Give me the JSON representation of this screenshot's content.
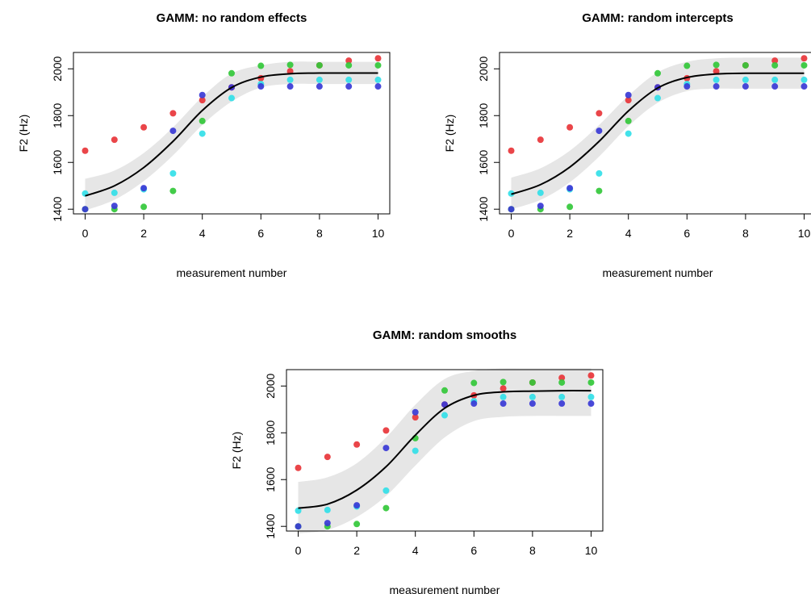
{
  "chart_data": [
    {
      "type": "scatter",
      "title": "GAMM: no random effects",
      "xlabel": "measurement number",
      "ylabel": "F2 (Hz)",
      "xlim": [
        0,
        10
      ],
      "ylim": [
        1400,
        2050
      ],
      "xticks": [
        "0",
        "2",
        "4",
        "6",
        "8",
        "10"
      ],
      "yticks": [
        "1400",
        "1600",
        "1800",
        "2000"
      ],
      "grid": false,
      "legend": "none",
      "series": [
        {
          "color": "#e8353a",
          "x": [
            0,
            1,
            2,
            3,
            4,
            5,
            6,
            7,
            8,
            9,
            10
          ],
          "y": [
            1650,
            1697,
            1750,
            1810,
            1866,
            1921,
            1960,
            1990,
            2015,
            2035,
            2045
          ]
        },
        {
          "color": "#33c83a",
          "x": [
            0,
            1,
            2,
            3,
            4,
            5,
            6,
            7,
            8,
            9,
            10
          ],
          "y": [
            1400,
            1400,
            1410,
            1478,
            1777,
            1981,
            2013,
            2017,
            2015,
            2015,
            2015
          ]
        },
        {
          "color": "#33e0e8",
          "x": [
            0,
            1,
            2,
            3,
            4,
            5,
            6,
            7,
            8,
            9,
            10
          ],
          "y": [
            1467,
            1470,
            1485,
            1553,
            1723,
            1875,
            1935,
            1953,
            1953,
            1953,
            1953
          ]
        },
        {
          "color": "#3a3ad6",
          "x": [
            0,
            1,
            2,
            3,
            4,
            5,
            6,
            7,
            8,
            9,
            10
          ],
          "y": [
            1400,
            1414,
            1490,
            1735,
            1888,
            1921,
            1925,
            1925,
            1925,
            1925,
            1925
          ]
        }
      ],
      "fit": {
        "color": "#000000",
        "x": [
          0,
          1,
          2,
          3,
          4,
          5,
          6,
          7,
          8,
          9,
          10
        ],
        "y": [
          1457,
          1500,
          1578,
          1690,
          1822,
          1920,
          1965,
          1979,
          1982,
          1982,
          1982
        ]
      },
      "band": {
        "color": "#e6e6e6",
        "lower": [
          1395,
          1440,
          1520,
          1630,
          1760,
          1860,
          1920,
          1935,
          1935,
          1935,
          1935
        ],
        "upper": [
          1530,
          1565,
          1640,
          1750,
          1880,
          1980,
          2015,
          2030,
          2030,
          2030,
          2030
        ]
      }
    },
    {
      "type": "scatter",
      "title": "GAMM: random intercepts",
      "xlabel": "measurement number",
      "ylabel": "F2 (Hz)",
      "xlim": [
        0,
        10
      ],
      "ylim": [
        1400,
        2050
      ],
      "xticks": [
        "0",
        "2",
        "4",
        "6",
        "8",
        "10"
      ],
      "yticks": [
        "1400",
        "1600",
        "1800",
        "2000"
      ],
      "grid": false,
      "legend": "none",
      "series": [
        {
          "color": "#e8353a",
          "x": [
            0,
            1,
            2,
            3,
            4,
            5,
            6,
            7,
            8,
            9,
            10
          ],
          "y": [
            1650,
            1697,
            1750,
            1810,
            1866,
            1921,
            1960,
            1990,
            2015,
            2035,
            2045
          ]
        },
        {
          "color": "#33c83a",
          "x": [
            0,
            1,
            2,
            3,
            4,
            5,
            6,
            7,
            8,
            9,
            10
          ],
          "y": [
            1400,
            1400,
            1410,
            1478,
            1777,
            1981,
            2013,
            2017,
            2015,
            2015,
            2015
          ]
        },
        {
          "color": "#33e0e8",
          "x": [
            0,
            1,
            2,
            3,
            4,
            5,
            6,
            7,
            8,
            9,
            10
          ],
          "y": [
            1467,
            1470,
            1485,
            1553,
            1723,
            1875,
            1935,
            1953,
            1953,
            1953,
            1953
          ]
        },
        {
          "color": "#3a3ad6",
          "x": [
            0,
            1,
            2,
            3,
            4,
            5,
            6,
            7,
            8,
            9,
            10
          ],
          "y": [
            1400,
            1414,
            1490,
            1735,
            1888,
            1921,
            1925,
            1925,
            1925,
            1925,
            1925
          ]
        }
      ],
      "fit": {
        "color": "#000000",
        "x": [
          0,
          1,
          2,
          3,
          4,
          5,
          6,
          7,
          8,
          9,
          10
        ],
        "y": [
          1464,
          1505,
          1580,
          1690,
          1820,
          1918,
          1963,
          1978,
          1981,
          1981,
          1981
        ]
      },
      "band": {
        "color": "#e6e6e6",
        "lower": [
          1400,
          1440,
          1515,
          1625,
          1755,
          1855,
          1905,
          1915,
          1915,
          1915,
          1915
        ],
        "upper": [
          1535,
          1575,
          1650,
          1760,
          1885,
          1985,
          2030,
          2045,
          2048,
          2048,
          2048
        ]
      }
    },
    {
      "type": "scatter",
      "title": "GAMM: random smooths",
      "xlabel": "measurement number",
      "ylabel": "F2 (Hz)",
      "xlim": [
        0,
        10
      ],
      "ylim": [
        1400,
        2050
      ],
      "xticks": [
        "0",
        "2",
        "4",
        "6",
        "8",
        "10"
      ],
      "yticks": [
        "1400",
        "1600",
        "1800",
        "2000"
      ],
      "grid": false,
      "legend": "none",
      "series": [
        {
          "color": "#e8353a",
          "x": [
            0,
            1,
            2,
            3,
            4,
            5,
            6,
            7,
            8,
            9,
            10
          ],
          "y": [
            1650,
            1697,
            1750,
            1810,
            1866,
            1921,
            1960,
            1990,
            2015,
            2035,
            2045
          ]
        },
        {
          "color": "#33c83a",
          "x": [
            0,
            1,
            2,
            3,
            4,
            5,
            6,
            7,
            8,
            9,
            10
          ],
          "y": [
            1400,
            1400,
            1410,
            1478,
            1777,
            1981,
            2013,
            2017,
            2015,
            2015,
            2015
          ]
        },
        {
          "color": "#33e0e8",
          "x": [
            0,
            1,
            2,
            3,
            4,
            5,
            6,
            7,
            8,
            9,
            10
          ],
          "y": [
            1467,
            1470,
            1485,
            1553,
            1723,
            1875,
            1935,
            1953,
            1953,
            1953,
            1953
          ]
        },
        {
          "color": "#3a3ad6",
          "x": [
            0,
            1,
            2,
            3,
            4,
            5,
            6,
            7,
            8,
            9,
            10
          ],
          "y": [
            1400,
            1414,
            1490,
            1735,
            1888,
            1921,
            1925,
            1925,
            1925,
            1925,
            1925
          ]
        }
      ],
      "fit": {
        "color": "#000000",
        "x": [
          0,
          1,
          2,
          3,
          4,
          5,
          6,
          7,
          8,
          9,
          10
        ],
        "y": [
          1478,
          1495,
          1555,
          1655,
          1790,
          1905,
          1960,
          1975,
          1978,
          1980,
          1980
        ]
      },
      "band": {
        "color": "#e6e6e6",
        "lower": [
          1370,
          1385,
          1440,
          1530,
          1660,
          1780,
          1850,
          1868,
          1872,
          1872,
          1872
        ],
        "upper": [
          1590,
          1610,
          1670,
          1780,
          1920,
          2030,
          2065,
          2075,
          2075,
          2075,
          2075
        ]
      }
    }
  ]
}
